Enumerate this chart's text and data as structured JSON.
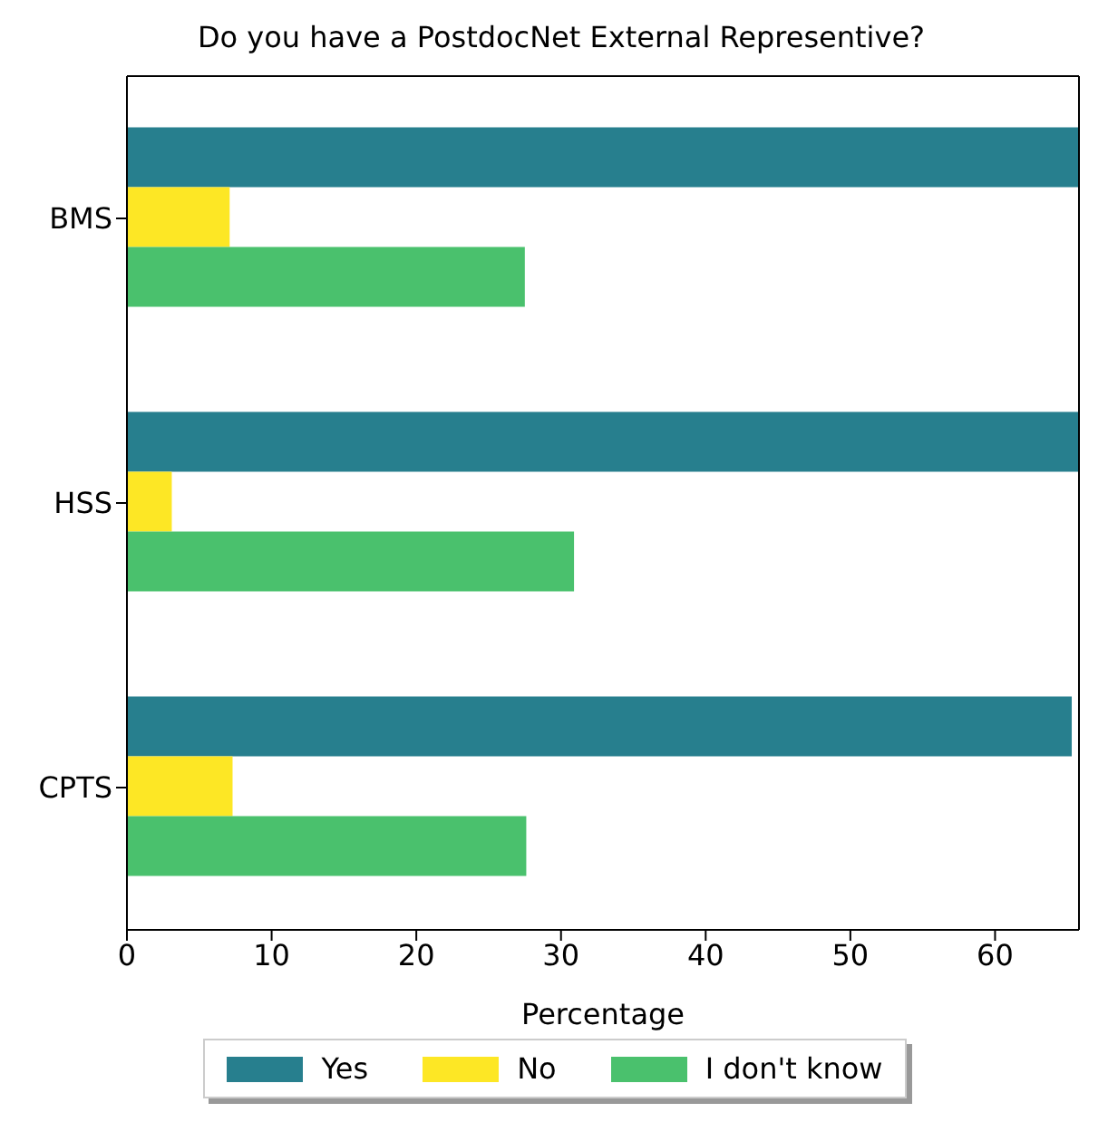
{
  "chart_data": {
    "type": "bar",
    "orientation": "horizontal",
    "title": "Do you have a PostdocNet External Representive?",
    "xlabel": "Percentage",
    "categories": [
      "BMS",
      "HSS",
      "CPTS"
    ],
    "series": [
      {
        "name": "Yes",
        "color": "#277f8e",
        "values": [
          65.8,
          65.8,
          65.3
        ]
      },
      {
        "name": "No",
        "color": "#fde725",
        "values": [
          7.1,
          3.1,
          7.3
        ]
      },
      {
        "name": "I don't know",
        "color": "#4ac16d",
        "values": [
          27.5,
          30.9,
          27.6
        ]
      }
    ],
    "xlim": [
      0,
      65.8
    ],
    "xticks": [
      0,
      10,
      20,
      30,
      40,
      50,
      60
    ],
    "legend": "bottom",
    "grid": false
  }
}
